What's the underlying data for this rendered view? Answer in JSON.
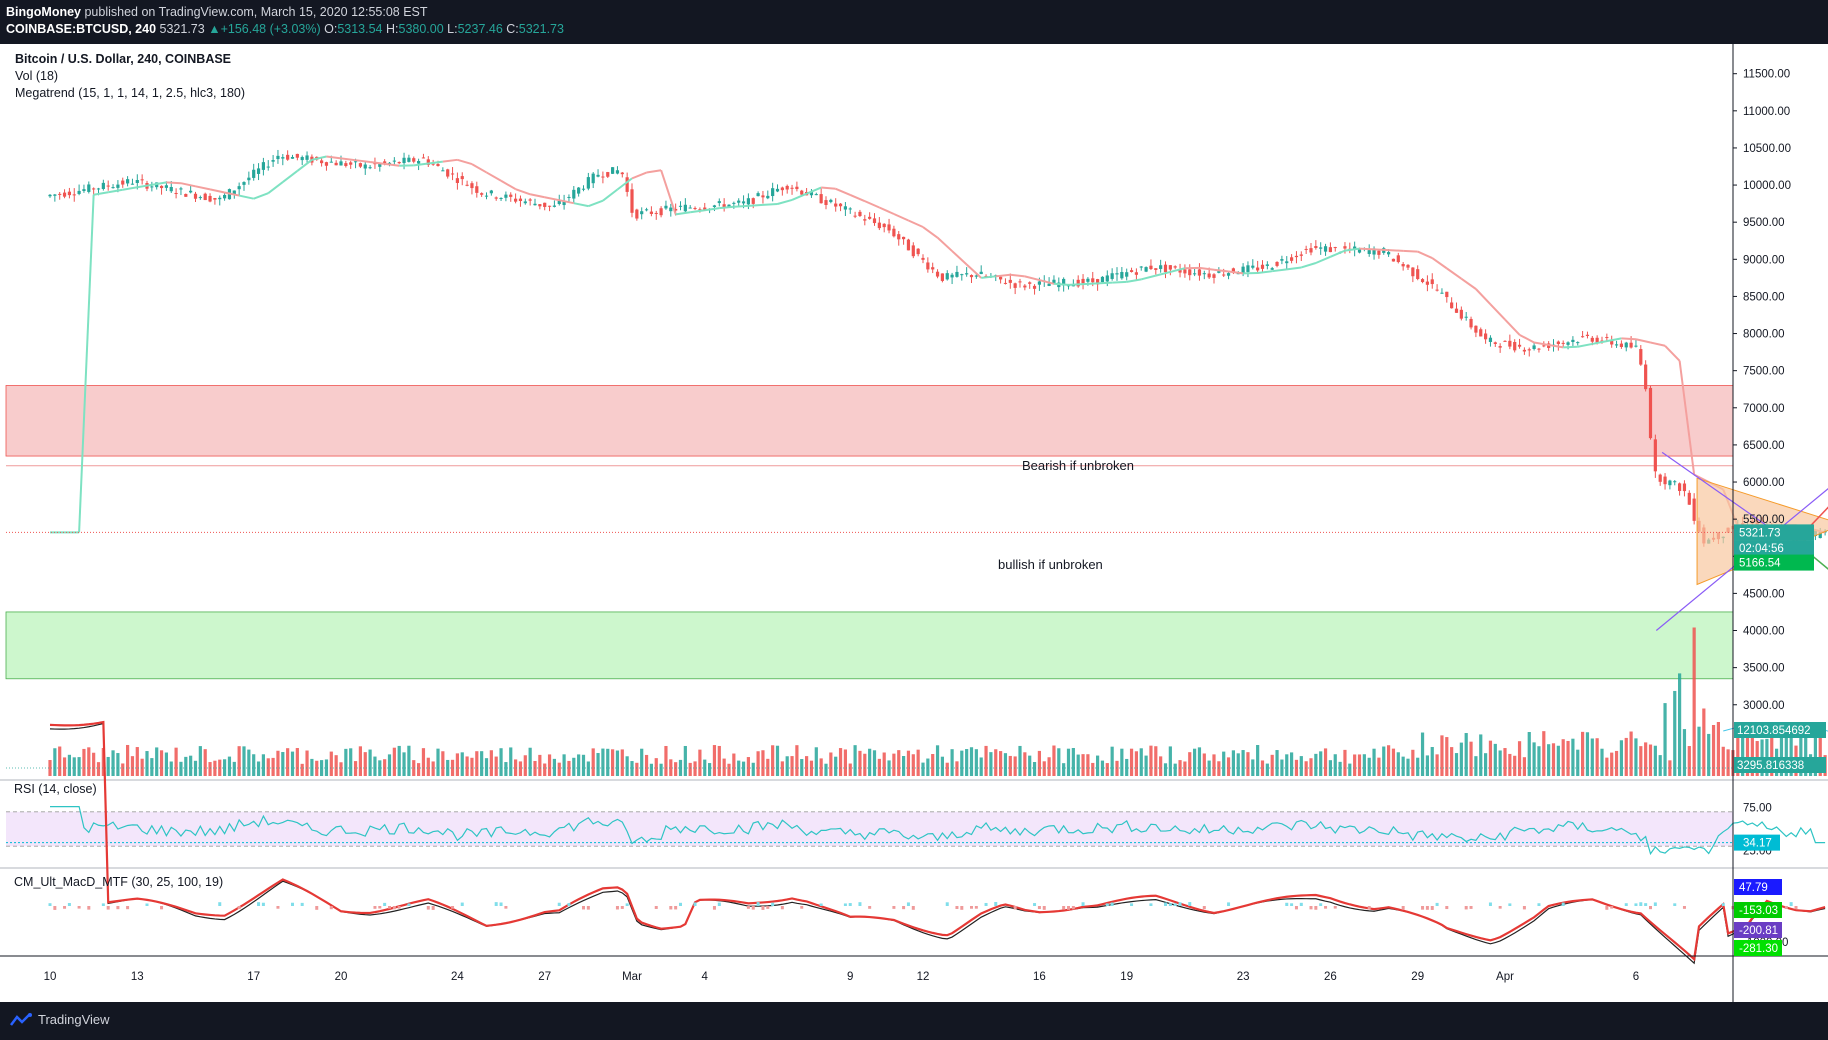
{
  "header": {
    "publisher": "BingoMoney",
    "published_text": "published on TradingView.com, March 15, 2020 12:55:08 EST",
    "symbol": "COINBASE:BTCUSD, 240",
    "last_price": "5321.73",
    "change": "+156.48 (+3.03%)",
    "ohlc": {
      "o_label": "O:",
      "o": "5313.54",
      "h_label": "H:",
      "h": "5380.00",
      "l_label": "L:",
      "l": "5237.46",
      "c_label": "C:",
      "c": "5321.73"
    }
  },
  "legend": {
    "title": "Bitcoin / U.S. Dollar, 240, COINBASE",
    "vol": "Vol (18)",
    "megatrend": "Megatrend (15, 1, 1, 14, 1, 2.5, hlc3, 180)"
  },
  "footer": {
    "brand": "TradingView"
  },
  "colors": {
    "bull": "#26a69a",
    "bear": "#ef5350",
    "resistance_zone": "#f8cccc",
    "support_zone": "#cdf7cd",
    "rsi_band": "#f3e6fb",
    "ellipse": "#e0eab0",
    "triangle": "#f8c8a0"
  },
  "chart_data": [
    {
      "type": "candlestick",
      "title": "Bitcoin / U.S. Dollar, 240, COINBASE",
      "y_axis": {
        "ticks": [
          "11500.00",
          "11000.00",
          "10500.00",
          "10000.00",
          "9500.00",
          "9000.00",
          "8500.00",
          "8000.00",
          "7500.00",
          "7000.00",
          "6500.00",
          "6000.00",
          "5500.00",
          "5000.00",
          "4500.00",
          "4000.00",
          "3500.00",
          "3000.00"
        ],
        "ylim": [
          2000,
          11900
        ]
      },
      "x_axis": {
        "ticks": [
          "10",
          "13",
          "17",
          "20",
          "24",
          "27",
          "Mar",
          "4",
          "9",
          "12",
          "16",
          "19",
          "23",
          "26",
          "29",
          "Apr",
          "6"
        ]
      },
      "path_anchors": [
        {
          "t": 0,
          "p": 9850
        },
        {
          "t": 3,
          "p": 10050
        },
        {
          "t": 6,
          "p": 9800
        },
        {
          "t": 8,
          "p": 10400
        },
        {
          "t": 11,
          "p": 10250
        },
        {
          "t": 13,
          "p": 10350
        },
        {
          "t": 15,
          "p": 9900
        },
        {
          "t": 17.5,
          "p": 9700
        },
        {
          "t": 19,
          "p": 10150
        },
        {
          "t": 19.8,
          "p": 10200
        },
        {
          "t": 20.2,
          "p": 9600
        },
        {
          "t": 22,
          "p": 9700
        },
        {
          "t": 24,
          "p": 9750
        },
        {
          "t": 25.5,
          "p": 10000
        },
        {
          "t": 27,
          "p": 9750
        },
        {
          "t": 29,
          "p": 9400
        },
        {
          "t": 30.8,
          "p": 8750
        },
        {
          "t": 32,
          "p": 8800
        },
        {
          "t": 33.5,
          "p": 8650
        },
        {
          "t": 36,
          "p": 8700
        },
        {
          "t": 38,
          "p": 8900
        },
        {
          "t": 40,
          "p": 8800
        },
        {
          "t": 42,
          "p": 8900
        },
        {
          "t": 43.5,
          "p": 9150
        },
        {
          "t": 46,
          "p": 9100
        },
        {
          "t": 47.8,
          "p": 8600
        },
        {
          "t": 49.5,
          "p": 7900
        },
        {
          "t": 51,
          "p": 7800
        },
        {
          "t": 53,
          "p": 7950
        },
        {
          "t": 54.7,
          "p": 7800
        },
        {
          "t": 55,
          "p": 7300
        },
        {
          "t": 55.3,
          "p": 6100
        },
        {
          "t": 56.3,
          "p": 5900
        },
        {
          "t": 57,
          "p": 5200
        },
        {
          "t": 58.5,
          "p": 5450
        },
        {
          "t": 60,
          "p": 5300
        },
        {
          "t": 61,
          "p": 5321.73
        }
      ],
      "zones": [
        {
          "name": "resistance",
          "from": 6350,
          "to": 7300
        },
        {
          "name": "support",
          "from": 3350,
          "to": 4250
        }
      ],
      "price_tags": [
        {
          "label": "5321.73",
          "price": 5321.73,
          "color": "#26a69a"
        },
        {
          "label": "02:04:56",
          "price": 5110,
          "color": "#26a69a"
        },
        {
          "label": "5166.54",
          "price": 4915,
          "color": "#00b84f"
        }
      ],
      "annotations": [
        "Bearish if unbroken",
        "bullish if unbroken"
      ]
    },
    {
      "type": "bar",
      "title": "Vol (18)",
      "tags": [
        {
          "label": "12103.854692",
          "value": 12103.854692
        },
        {
          "label": "3295.816338",
          "value": 3295.816338
        }
      ],
      "spike_values": [
        {
          "t": 55.5,
          "value": 54000
        },
        {
          "t": 55.8,
          "value": 63000
        },
        {
          "t": 56.0,
          "value": 76000
        },
        {
          "t": 56.5,
          "value": 110000
        },
        {
          "t": 56.8,
          "value": 50000
        },
        {
          "t": 57.3,
          "value": 40000
        },
        {
          "t": 58,
          "value": 28000
        }
      ]
    },
    {
      "type": "line",
      "title": "RSI (14, close)",
      "ticks": [
        "75.00",
        "25.00"
      ],
      "bands": {
        "upper": 70,
        "lower": 30
      },
      "last_label": "34.17",
      "last_value": 34.17
    },
    {
      "type": "line",
      "title": "CM_Ult_MacD_MTF (30, 25, 100, 19)",
      "ticks": [
        "-1000.00"
      ],
      "tags": [
        {
          "label": "47.79",
          "color": "#1a1aff"
        },
        {
          "label": "-153.03",
          "color": "#00cc00"
        },
        {
          "label": "-200.81",
          "color": "#6a3dc4"
        },
        {
          "label": "-281.30",
          "color": "#00e000"
        }
      ]
    }
  ]
}
